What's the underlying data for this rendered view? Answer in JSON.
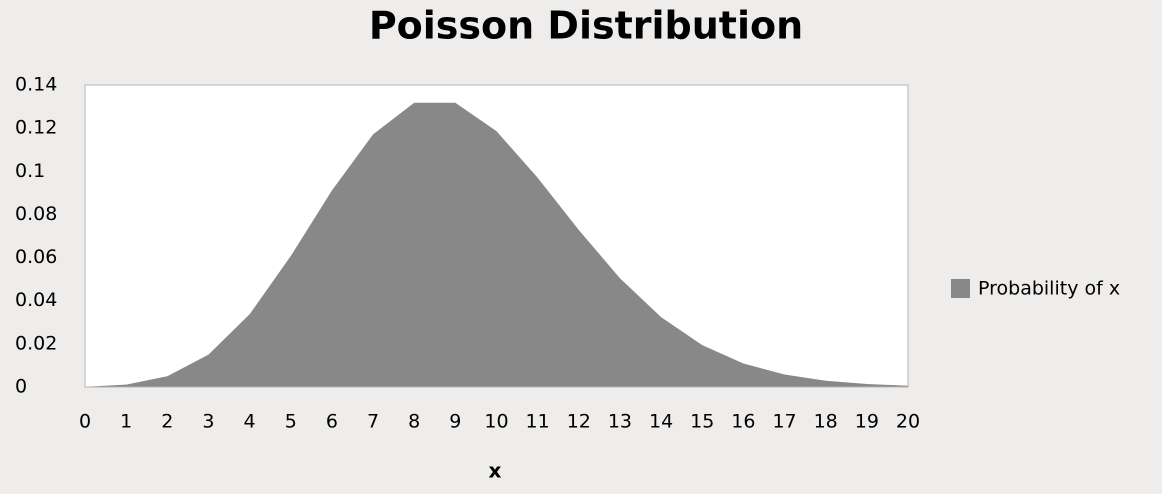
{
  "chart_data": {
    "type": "area",
    "title": "Poisson Distribution",
    "x_label": "x",
    "x": [
      0,
      1,
      2,
      3,
      4,
      5,
      6,
      7,
      8,
      9,
      10,
      11,
      12,
      13,
      14,
      15,
      16,
      17,
      18,
      19,
      20
    ],
    "series": [
      {
        "name": "Probability of x",
        "color": "#888888",
        "values": [
          0.0001,
          0.0011,
          0.005,
          0.015,
          0.0337,
          0.0607,
          0.0911,
          0.1171,
          0.1318,
          0.1318,
          0.1186,
          0.097,
          0.0728,
          0.0504,
          0.0324,
          0.0194,
          0.0109,
          0.0058,
          0.0029,
          0.0014,
          0.0006
        ]
      }
    ],
    "xlim": [
      0,
      20
    ],
    "xticks": [
      0,
      1,
      2,
      3,
      4,
      5,
      6,
      7,
      8,
      9,
      10,
      11,
      12,
      13,
      14,
      15,
      16,
      17,
      18,
      19,
      20
    ],
    "ylim": [
      0,
      0.14
    ],
    "yticks": [
      0,
      0.02,
      0.04,
      0.06,
      0.08,
      0.1,
      0.12,
      0.14
    ],
    "grid": false,
    "legend": "right"
  }
}
